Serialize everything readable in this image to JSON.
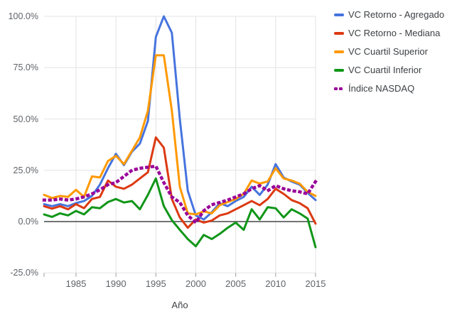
{
  "chart_data": {
    "type": "line",
    "title": "",
    "xlabel": "Año",
    "ylabel": "",
    "xlim": [
      1981,
      2015
    ],
    "ylim": [
      -25,
      100
    ],
    "grid": true,
    "legend_position": "right",
    "x_tick_values": [
      1985,
      1990,
      1995,
      2000,
      2005,
      2010,
      2015
    ],
    "x_tick_labels": [
      "1985",
      "1990",
      "1995",
      "2000",
      "2005",
      "2010",
      "2015"
    ],
    "y_tick_values": [
      100,
      75,
      50,
      25,
      0,
      -25
    ],
    "y_tick_labels": [
      "100.0%",
      "75.0%",
      "50.0%",
      "25.0%",
      "0.0%",
      "-25.0%"
    ],
    "x": [
      1981,
      1982,
      1983,
      1984,
      1985,
      1986,
      1987,
      1988,
      1989,
      1990,
      1991,
      1992,
      1993,
      1994,
      1995,
      1996,
      1997,
      1998,
      1999,
      2000,
      2001,
      2002,
      2003,
      2004,
      2005,
      2006,
      2007,
      2008,
      2009,
      2010,
      2011,
      2012,
      2013,
      2014,
      2015
    ],
    "series": [
      {
        "name": "VC Retorno - Agregado",
        "color": "#4674DE",
        "style": "solid",
        "values": [
          8.5,
          7.5,
          8.5,
          7.5,
          9,
          10,
          12.5,
          18,
          26,
          33,
          27.5,
          34,
          38,
          49,
          90,
          100,
          92,
          50,
          15,
          3,
          1,
          4.5,
          9,
          7.5,
          10,
          12,
          17,
          13,
          18,
          28,
          21.5,
          19.5,
          18,
          14,
          10.5
        ]
      },
      {
        "name": "VC Retorno - Mediana",
        "color": "#DC3912",
        "style": "solid",
        "values": [
          7.5,
          6.3,
          7.5,
          6,
          8.5,
          6.5,
          11,
          12,
          20,
          17,
          16,
          18,
          21,
          24,
          41,
          36,
          11,
          2,
          -3,
          1,
          -0.5,
          0.5,
          3,
          4,
          6,
          8,
          10,
          8,
          11,
          16,
          13.5,
          10.5,
          9,
          6.5,
          -1
        ]
      },
      {
        "name": "VC Cuartil Superior",
        "color": "#FF9900",
        "style": "solid",
        "values": [
          13,
          11.5,
          12.5,
          12,
          15.5,
          12,
          22,
          21.5,
          29.5,
          32,
          28,
          34.5,
          41,
          54,
          81,
          81,
          54,
          17,
          4,
          3.5,
          5,
          4,
          8,
          9.5,
          11,
          13.5,
          20,
          18.5,
          19.5,
          26,
          21,
          20,
          18.5,
          14.5,
          12.5
        ]
      },
      {
        "name": "VC Cuartil Inferior",
        "color": "#109618",
        "style": "solid",
        "values": [
          3.5,
          2.3,
          4,
          3,
          5.2,
          3.5,
          7,
          6.5,
          9.5,
          11,
          9.3,
          10,
          6,
          13,
          21,
          7.5,
          0.7,
          -4,
          -8.5,
          -12,
          -6.5,
          -8.5,
          -6,
          -3,
          -0.5,
          -4,
          6,
          1,
          7,
          6.5,
          2,
          6,
          4,
          1.5,
          -12.5
        ]
      },
      {
        "name": "Índice NASDAQ",
        "color": "#990099",
        "style": "dotted",
        "values": [
          10.5,
          10.5,
          11,
          10.5,
          11,
          12,
          13.5,
          15.5,
          18,
          19,
          22,
          25,
          26,
          26.5,
          27,
          19,
          12,
          9.3,
          3,
          -0.5,
          5.3,
          8.2,
          9.3,
          10.5,
          12,
          13.5,
          16,
          17.5,
          15,
          17.5,
          16,
          15,
          14.5,
          13.5,
          19.5
        ]
      }
    ]
  },
  "colors": {
    "background": "#FFFFFF",
    "gridline": "#E3E3E3",
    "zero_baseline": "#616161",
    "tick_mark": "#9E9E9E",
    "axis_text": "#5F6368",
    "legend_text": "#3C4043"
  }
}
